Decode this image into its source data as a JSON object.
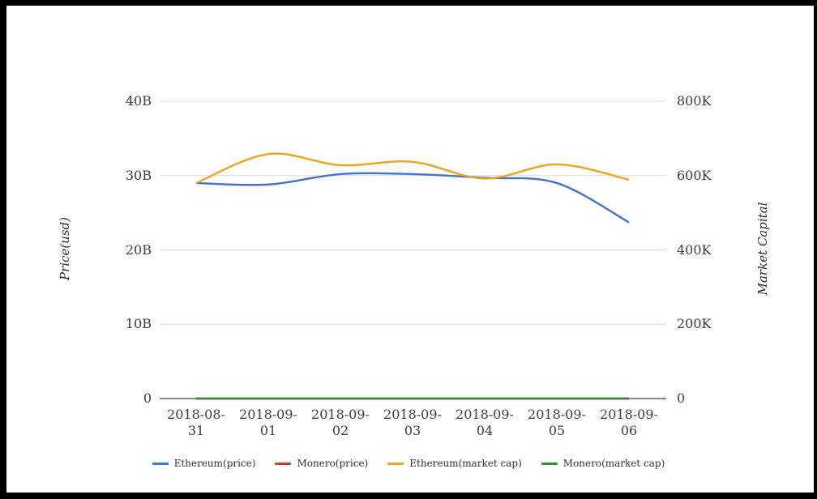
{
  "frame": {
    "border_color": "#000000",
    "canvas_color": "#ffffff"
  },
  "chart_data": {
    "type": "line",
    "smooth": true,
    "grid": true,
    "legend_position": "bottom",
    "categories": [
      "2018-08-31",
      "2018-09-01",
      "2018-09-02",
      "2018-09-03",
      "2018-09-04",
      "2018-09-05",
      "2018-09-06"
    ],
    "left_axis": {
      "title": "Price(usd)",
      "max": 40,
      "unit": "billions USD",
      "ticks": [
        {
          "label": "0",
          "value": 0
        },
        {
          "label": "10B",
          "value": 10
        },
        {
          "label": "20B",
          "value": 20
        },
        {
          "label": "30B",
          "value": 30
        },
        {
          "label": "40B",
          "value": 40
        }
      ]
    },
    "right_axis": {
      "title": "Market Capital",
      "max": 800,
      "unit": "thousands",
      "ticks": [
        {
          "label": "0",
          "value": 0
        },
        {
          "label": "200K",
          "value": 200
        },
        {
          "label": "400K",
          "value": 400
        },
        {
          "label": "600K",
          "value": 600
        },
        {
          "label": "800K",
          "value": 800
        }
      ]
    },
    "series": [
      {
        "name": "Ethereum(price)",
        "axis": "left",
        "color": "#4373d3",
        "values": [
          29.0,
          28.8,
          30.2,
          30.2,
          29.7,
          29.0,
          23.7
        ]
      },
      {
        "name": "Monero(price)",
        "axis": "left",
        "color": "#cc3b22",
        "values": [
          0,
          0,
          0,
          0,
          0,
          0,
          0
        ]
      },
      {
        "name": "Ethereum(market cap)",
        "axis": "right",
        "color": "#f3a11e",
        "values": [
          580,
          658,
          628,
          637,
          592,
          630,
          589
        ]
      },
      {
        "name": "Monero(market cap)",
        "axis": "right",
        "color": "#2f9030",
        "values": [
          0,
          0,
          0,
          0,
          0,
          0,
          0
        ]
      }
    ],
    "colors": {
      "grid": "#dcdcdc",
      "axis_line": "#424242",
      "tick_text": "#3e3e3e"
    }
  }
}
